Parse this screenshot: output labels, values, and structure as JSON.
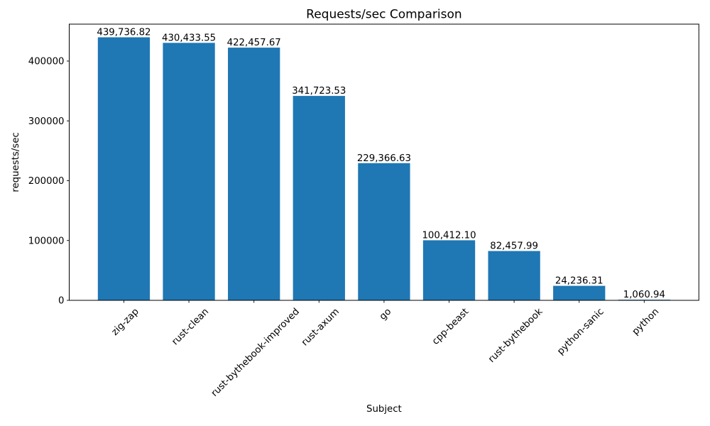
{
  "figure": {
    "background": "#ffffff"
  },
  "chart_data": {
    "type": "bar",
    "title": "Requests/sec Comparison",
    "xlabel": "Subject",
    "ylabel": "requests/sec",
    "categories": [
      "zig-zap",
      "rust-clean",
      "rust-bythebook-improved",
      "rust-axum",
      "go",
      "cpp-beast",
      "rust-bythebook",
      "python-sanic",
      "python"
    ],
    "values": [
      439736.82,
      430433.55,
      422457.67,
      341723.53,
      229366.63,
      100412.1,
      82457.99,
      24236.31,
      1060.94
    ],
    "value_labels": [
      "439,736.82",
      "430,433.55",
      "422,457.67",
      "341,723.53",
      "229,366.63",
      "100,412.10",
      "82,457.99",
      "24,236.31",
      "1,060.94"
    ],
    "yticks": [
      0,
      100000,
      200000,
      300000,
      400000
    ],
    "ytick_labels": [
      "0",
      "100000",
      "200000",
      "300000",
      "400000"
    ],
    "ylim": [
      0,
      461724
    ],
    "x_tick_rotation_deg": 45,
    "bar_color": "#1f77b4",
    "axis_color": "#000000",
    "text_color": "#000000",
    "grid": false,
    "legend_position": "none"
  }
}
